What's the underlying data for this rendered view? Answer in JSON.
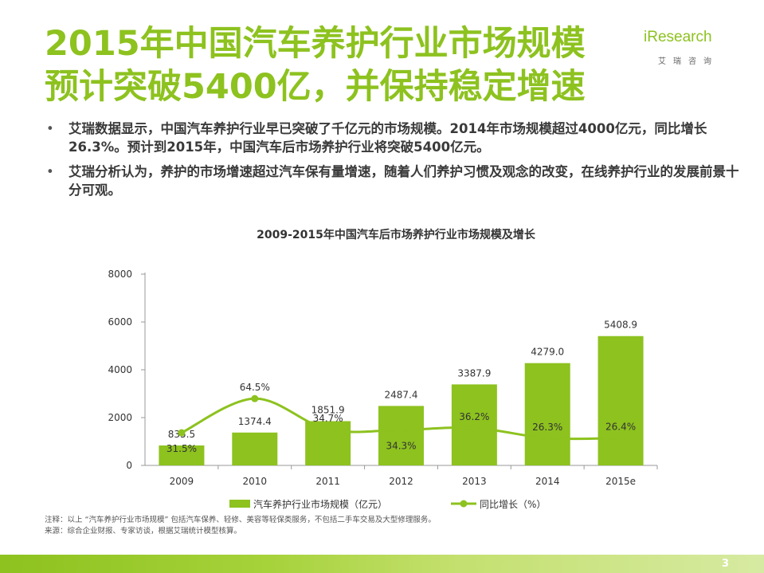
{
  "slide": {
    "title": "2015年中国汽车养护行业市场规模预计突破5400亿，并保持稳定增速",
    "logo": {
      "brand": "iResearch",
      "sub": "艾瑞咨询"
    },
    "bullets": [
      "艾瑞数据显示，中国汽车养护行业早已突破了千亿元的市场规模。2014年市场规模超过4000亿元，同比增长26.3%。预计到2015年，中国汽车后市场养护行业将突破5400亿元。",
      "艾瑞分析认为，养护的市场增速超过汽车保有量增速，随着人们养护习惯及观念的改变，在线养护行业的发展前景十分可观。"
    ],
    "bullet_marker": "•",
    "footnote_note": "注释：以上 “汽车养护行业市场规模” 包括汽车保养、轻修、美容等轻保类服务，不包括二手车交易及大型修理服务。",
    "footnote_source": "来源：综合企业财报、专家访谈，根据艾瑞统计模型核算。",
    "page_number": "3",
    "colors": {
      "accent": "#8dc21f",
      "bar": "#8dc21f",
      "line": "#8dc21f",
      "text": "#333333"
    }
  },
  "chart_data": {
    "type": "bar",
    "title": "2009-2015年中国汽车后市场养护行业市场规模及增长",
    "categories": [
      "2009",
      "2010",
      "2011",
      "2012",
      "2013",
      "2014",
      "2015e"
    ],
    "series": [
      {
        "name": "汽车养护行业市场规模（亿元）",
        "type": "bar",
        "axis": "left",
        "values": [
          835.5,
          1374.4,
          1851.9,
          2487.4,
          3387.9,
          4279.0,
          5408.9
        ],
        "labels": [
          "835.5",
          "1374.4",
          "1851.9",
          "2487.4",
          "3387.9",
          "4279.0",
          "5408.9"
        ]
      },
      {
        "name": "同比增长（%）",
        "type": "line",
        "axis": "right",
        "values": [
          31.5,
          64.5,
          34.7,
          34.3,
          36.2,
          26.3,
          26.4
        ],
        "labels": [
          "31.5%",
          "64.5%",
          "34.7%",
          "34.3%",
          "36.2%",
          "26.3%",
          "26.4%"
        ]
      }
    ],
    "y_left": {
      "min": 0,
      "max": 8000,
      "ticks": [
        "0",
        "2000",
        "4000",
        "6000",
        "8000"
      ]
    },
    "legend": "bottom-center",
    "grid": false
  }
}
